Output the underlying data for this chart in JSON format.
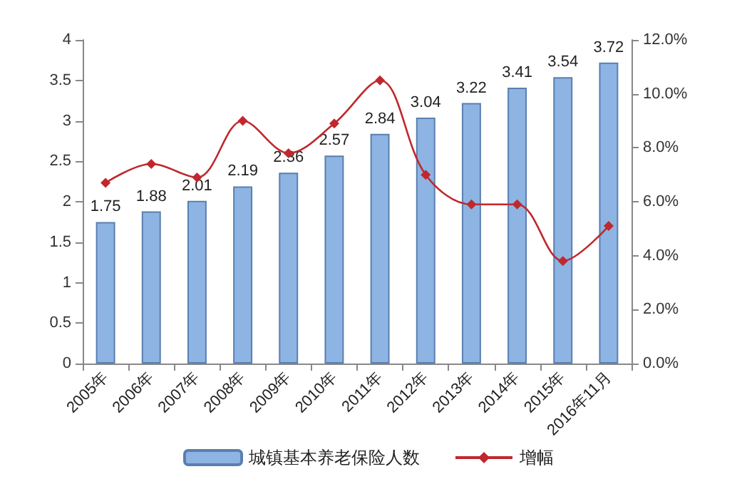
{
  "chart_data": {
    "type": "bar",
    "categories": [
      "2005年",
      "2006年",
      "2007年",
      "2008年",
      "2009年",
      "2010年",
      "2011年",
      "2012年",
      "2013年",
      "2014年",
      "2015年",
      "2016年11月"
    ],
    "series": [
      {
        "name": "城镇基本养老保险人数",
        "color": "#8db4e2",
        "values": [
          1.75,
          1.88,
          2.01,
          2.19,
          2.36,
          2.57,
          2.84,
          3.04,
          3.22,
          3.41,
          3.54,
          3.72
        ],
        "value_labels": [
          "1.75",
          "1.88",
          "2.01",
          "2.19",
          "2.36",
          "2.57",
          "2.84",
          "3.04",
          "3.22",
          "3.41",
          "3.54",
          "3.72"
        ]
      },
      {
        "name": "增幅",
        "type": "line",
        "axis": "y2",
        "color": "#c0282d",
        "marker": "diamond",
        "values": [
          6.7,
          7.4,
          6.9,
          9.0,
          7.8,
          8.9,
          10.5,
          7.0,
          5.9,
          5.9,
          3.8,
          5.1
        ]
      }
    ],
    "ylim": [
      0,
      4
    ],
    "yticks": [
      0,
      0.5,
      1,
      1.5,
      2,
      2.5,
      3,
      3.5,
      4
    ],
    "y2lim": [
      0,
      12
    ],
    "y2ticks": [
      {
        "value": 0,
        "label": "0.0%"
      },
      {
        "value": 2,
        "label": "2.0%"
      },
      {
        "value": 4,
        "label": "4.0%"
      },
      {
        "value": 6,
        "label": "6.0%"
      },
      {
        "value": 8,
        "label": "8.0%"
      },
      {
        "value": 10,
        "label": "10.0%"
      },
      {
        "value": 12,
        "label": "12.0%"
      }
    ],
    "grid": false,
    "legend": "bottom"
  }
}
